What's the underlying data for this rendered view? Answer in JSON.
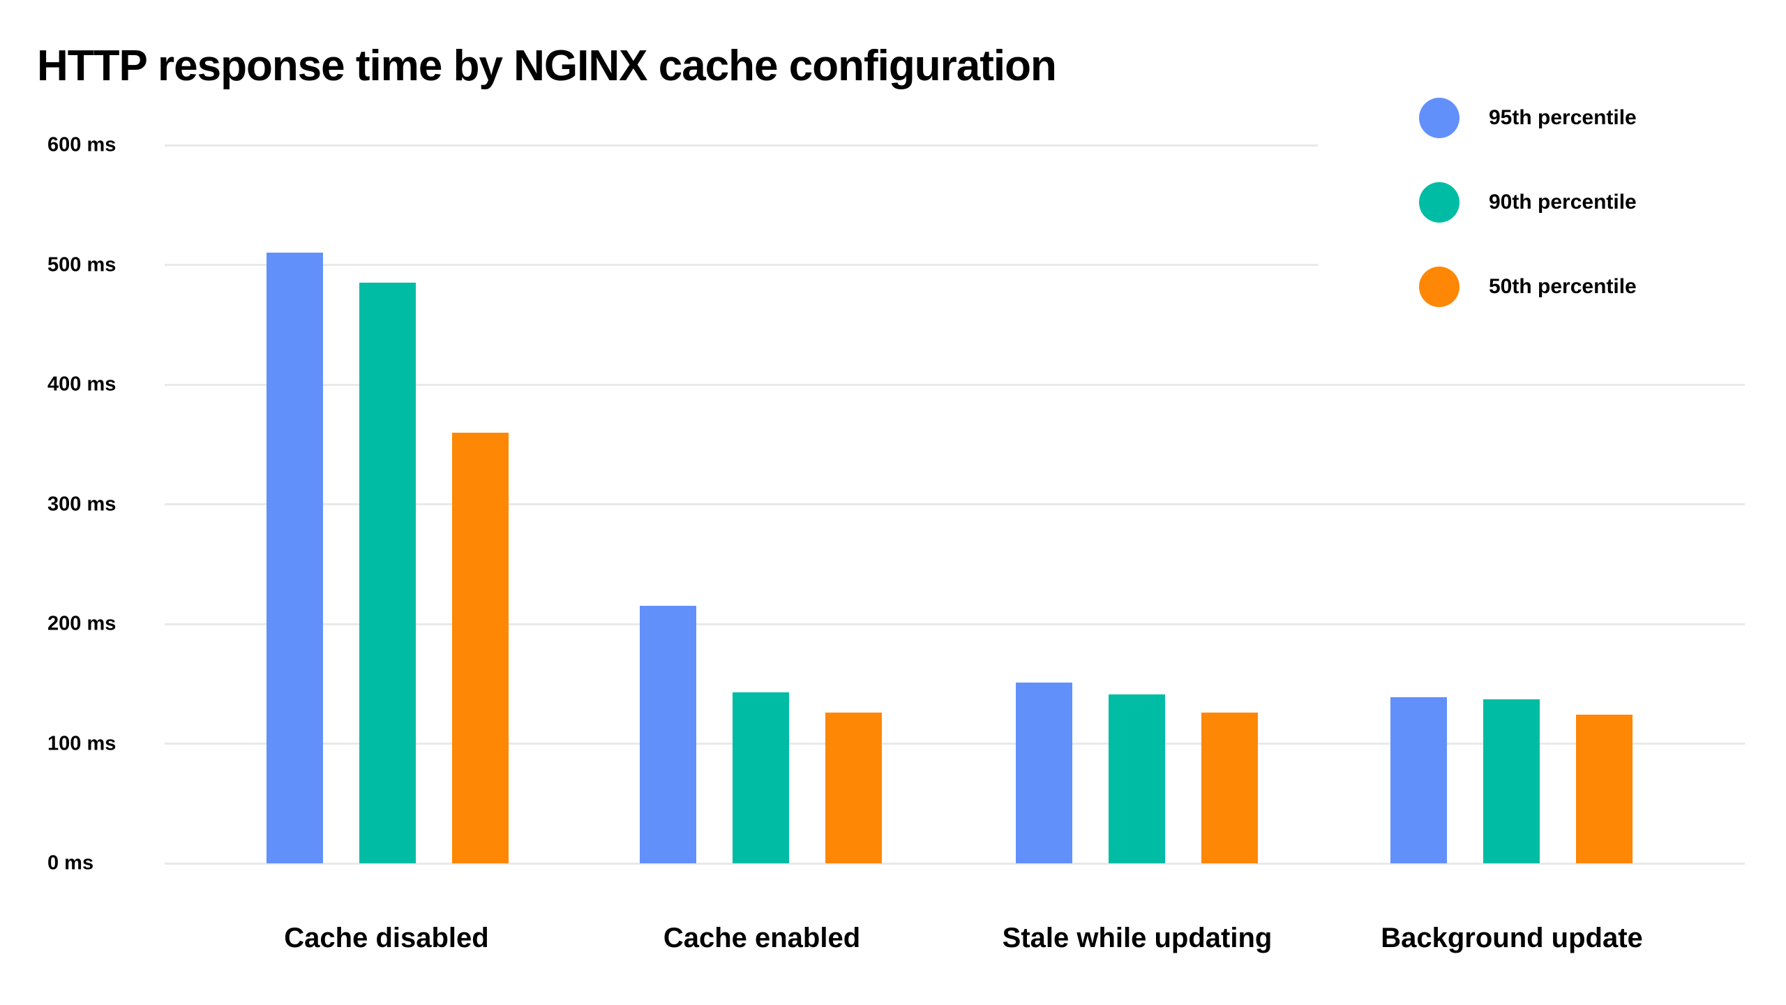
{
  "chart_data": {
    "type": "bar",
    "title": "HTTP response time by NGINX cache configuration",
    "categories": [
      "Cache disabled",
      "Cache enabled",
      "Stale while updating",
      "Background update"
    ],
    "series": [
      {
        "name": "95th percentile",
        "color": "#6290FB",
        "values": [
          510,
          215,
          151,
          139
        ]
      },
      {
        "name": "90th percentile",
        "color": "#00BCA4",
        "values": [
          485,
          143,
          141,
          137
        ]
      },
      {
        "name": "50th percentile",
        "color": "#FE8705",
        "values": [
          360,
          126,
          126,
          124
        ]
      }
    ],
    "xlabel": "",
    "ylabel": "",
    "y_axis": {
      "min": 0,
      "max": 600,
      "step": 100,
      "unit": "ms",
      "tick_labels": [
        "0 ms",
        "100 ms",
        "200 ms",
        "300 ms",
        "400 ms",
        "500 ms",
        "600 ms"
      ]
    },
    "grid": true,
    "legend_position": "top-right",
    "colors": {
      "background": "#FFFFFF",
      "gridline": "#E9E9E9",
      "text": "#000000"
    }
  }
}
